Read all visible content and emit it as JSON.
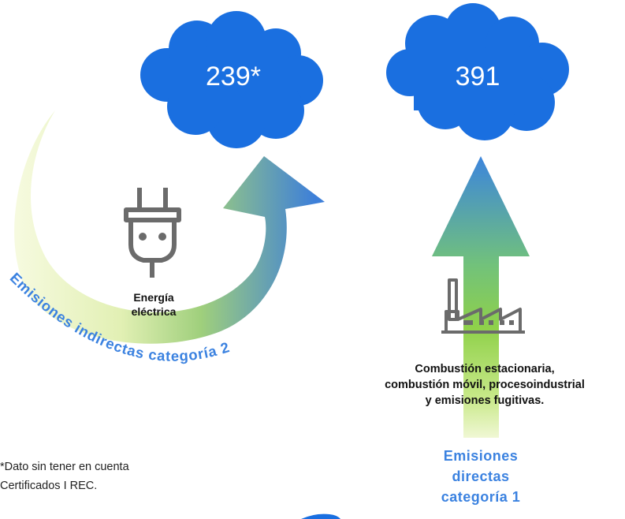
{
  "colors": {
    "cloud": "#1a6fe0",
    "arrow_blue": "#3d86db",
    "arrow_green": "#8fd14a",
    "arrow_pale": "#f2f8d8",
    "label_blue": "#3b82e0",
    "icon_gray": "#6b6b6b"
  },
  "indirect": {
    "value": "239*",
    "icon": "plug-icon",
    "source_line1": "Energía",
    "source_line2": "eléctrica",
    "arc_label": "Emisiones indirectas categoría 2"
  },
  "direct": {
    "value": "391",
    "icon": "factory-icon",
    "sources_line1": "Combustión estacionaria,",
    "sources_line2": "combustión móvil, procesoindustrial",
    "sources_line3": "y emisiones fugitivas.",
    "label_line1": "Emisiones",
    "label_line2": "directas",
    "label_line3": "categoría 1"
  },
  "footnote": {
    "line1": "*Dato sin tener en cuenta",
    "line2": "Certificados I REC."
  }
}
